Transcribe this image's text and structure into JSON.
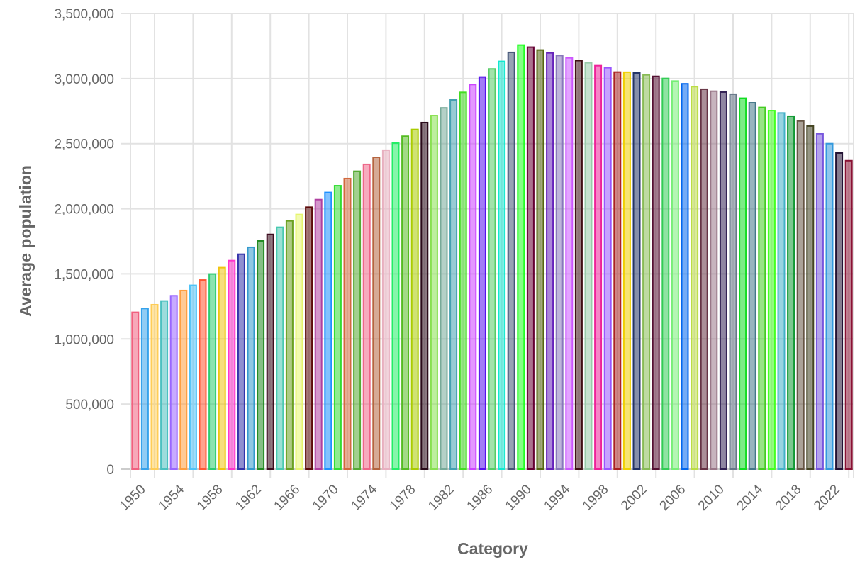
{
  "chart_data": {
    "type": "bar",
    "title": "",
    "xlabel": "Category",
    "ylabel": "Average population",
    "ylim": [
      0,
      3500000
    ],
    "yticks": [
      "0",
      "500,000",
      "1,000,000",
      "1,500,000",
      "2,000,000",
      "2,500,000",
      "3,000,000",
      "3,500,000"
    ],
    "ytick_values": [
      0,
      500000,
      1000000,
      1500000,
      2000000,
      2500000,
      3000000,
      3500000
    ],
    "grid": true,
    "legend": "none",
    "categories": [
      "1950",
      "1951",
      "1952",
      "1953",
      "1954",
      "1955",
      "1956",
      "1957",
      "1958",
      "1959",
      "1960",
      "1961",
      "1962",
      "1963",
      "1964",
      "1965",
      "1966",
      "1967",
      "1968",
      "1969",
      "1970",
      "1971",
      "1972",
      "1973",
      "1974",
      "1975",
      "1976",
      "1977",
      "1978",
      "1979",
      "1980",
      "1981",
      "1982",
      "1983",
      "1984",
      "1985",
      "1986",
      "1987",
      "1988",
      "1989",
      "1990",
      "1991",
      "1992",
      "1993",
      "1994",
      "1995",
      "1996",
      "1997",
      "1998",
      "1999",
      "2000",
      "2001",
      "2002",
      "2003",
      "2004",
      "2005",
      "2006",
      "2007",
      "2008",
      "2009",
      "2010",
      "2011",
      "2012",
      "2013",
      "2014",
      "2015",
      "2016",
      "2017",
      "2018",
      "2019",
      "2020",
      "2021",
      "2022",
      "2023",
      "2024"
    ],
    "xtick_labels": [
      "1950",
      "1954",
      "1958",
      "1962",
      "1966",
      "1970",
      "1974",
      "1978",
      "1982",
      "1986",
      "1990",
      "1994",
      "1998",
      "2002",
      "2006",
      "2010",
      "2014",
      "2018",
      "2022"
    ],
    "values": [
      1205000,
      1234000,
      1263000,
      1292000,
      1332000,
      1372000,
      1412000,
      1453000,
      1499000,
      1548000,
      1602000,
      1651000,
      1704000,
      1753000,
      1803000,
      1858000,
      1907000,
      1956000,
      2012000,
      2070000,
      2125000,
      2177000,
      2232000,
      2288000,
      2341000,
      2395000,
      2450000,
      2504000,
      2557000,
      2609000,
      2662000,
      2716000,
      2775000,
      2836000,
      2894000,
      2954000,
      3012000,
      3074000,
      3132000,
      3201000,
      3257000,
      3241000,
      3219000,
      3197000,
      3177000,
      3159000,
      3138000,
      3121000,
      3099000,
      3083000,
      3050000,
      3049000,
      3043000,
      3028000,
      3017000,
      3001000,
      2981000,
      2960000,
      2938000,
      2918000,
      2903000,
      2896000,
      2880000,
      2849000,
      2814000,
      2778000,
      2754000,
      2736000,
      2711000,
      2674000,
      2635000,
      2576000,
      2500000,
      2428000,
      2369000
    ],
    "colors": [
      "#f0607f",
      "#36a2eb",
      "#ffcd56",
      "#4bc0c0",
      "#9966ff",
      "#ff9f40",
      "#4fc3f7",
      "#ff5733",
      "#2ecc71",
      "#f1c40f",
      "#ff33cc",
      "#3333aa",
      "#3399cc",
      "#228b22",
      "#3d0c1f",
      "#48c9b0",
      "#6aa121",
      "#e6f56e",
      "#5c0a0a",
      "#b040a0",
      "#1e90ff",
      "#33dd33",
      "#d2693e",
      "#55aa33",
      "#ee6688",
      "#b5643f",
      "#e8b0c0",
      "#22ee66",
      "#55bb22",
      "#aacc00",
      "#2a0a1a",
      "#88e050",
      "#77aa99",
      "#44a0b0",
      "#44dd22",
      "#cc44ff",
      "#5511ee",
      "#55cc66",
      "#11e8d0",
      "#445577",
      "#22ff22",
      "#660033",
      "#556611",
      "#6622bb",
      "#8877bb",
      "#cc55ff",
      "#401015",
      "#99ccaa",
      "#ee2299",
      "#9955ff",
      "#aa2222",
      "#f0d000",
      "#223366",
      "#88bb55",
      "#551133",
      "#33cc55",
      "#77ee77",
      "#0066ee",
      "#bbdd44",
      "#663344",
      "#997788",
      "#332255",
      "#667788",
      "#11dd22",
      "#447788",
      "#44cc22",
      "#44ff22",
      "#44b0c8",
      "#119933",
      "#665544",
      "#444422",
      "#7755dd",
      "#3399dd",
      "#221133",
      "#881133"
    ]
  }
}
